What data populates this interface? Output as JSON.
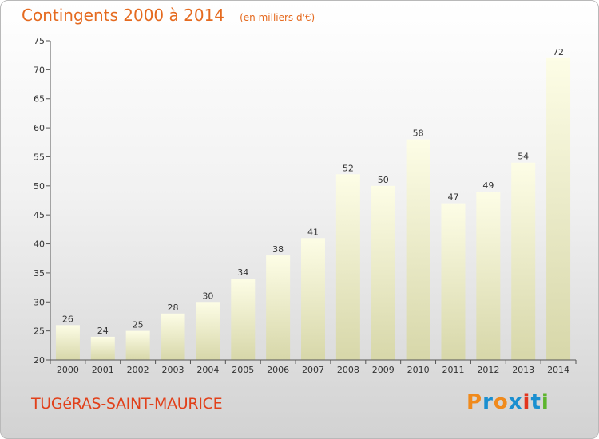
{
  "header": {
    "title": "Contingents 2000 à 2014",
    "subtitle": "(en milliers d'€)"
  },
  "footer": {
    "commune": "TUGéRAS-SAINT-MAURICE",
    "brand_letters": [
      "P",
      "r",
      "o",
      "x",
      "i",
      "t",
      "i"
    ],
    "brand_colors": [
      "#f08a1c",
      "#1a8fd0",
      "#f08a1c",
      "#1a8fd0",
      "#e2341d",
      "#1a8fd0",
      "#5db52e"
    ]
  },
  "chart_data": {
    "type": "bar",
    "title": "Contingents 2000 à 2014",
    "subtitle": "(en milliers d'€)",
    "categories": [
      "2000",
      "2001",
      "2002",
      "2003",
      "2004",
      "2005",
      "2006",
      "2007",
      "2008",
      "2009",
      "2010",
      "2011",
      "2012",
      "2013",
      "2014"
    ],
    "values": [
      26,
      24,
      25,
      28,
      30,
      34,
      38,
      41,
      52,
      50,
      58,
      47,
      49,
      54,
      72
    ],
    "ylim": [
      20,
      75
    ],
    "yticks": [
      20,
      25,
      30,
      35,
      40,
      45,
      50,
      55,
      60,
      65,
      70,
      75
    ],
    "data_labels": true,
    "grid": false,
    "colors": {
      "bar_top": "#fdfde6",
      "bar_bottom": "#d7d7a9",
      "axis": "#555555",
      "tick_text": "#333333",
      "title": "#e56a1f"
    }
  }
}
